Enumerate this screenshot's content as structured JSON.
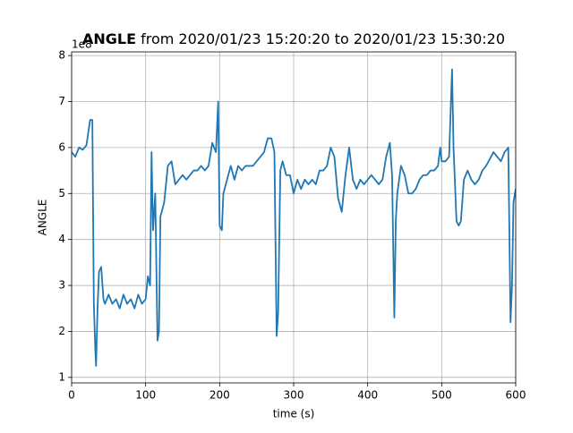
{
  "chart_data": {
    "type": "line",
    "title_bold": "ANGLE",
    "title": "from 2020/01/23 15:20:20 to 2020/01/23 15:30:20",
    "y_offset_label": "1e8",
    "xlabel": "time (s)",
    "ylabel": "ANGLE",
    "xlim": [
      0,
      600
    ],
    "ylim": [
      0.88,
      8.08
    ],
    "xticks": [
      0,
      100,
      200,
      300,
      400,
      500,
      600
    ],
    "yticks": [
      1,
      2,
      3,
      4,
      5,
      6,
      7,
      8
    ],
    "grid": true,
    "x": [
      0,
      5,
      10,
      15,
      20,
      25,
      28,
      30,
      32,
      33,
      35,
      37,
      40,
      43,
      45,
      50,
      55,
      60,
      65,
      70,
      75,
      80,
      85,
      90,
      95,
      100,
      103,
      106,
      108,
      110,
      113,
      116,
      118,
      120,
      125,
      130,
      135,
      140,
      145,
      150,
      155,
      160,
      165,
      170,
      175,
      180,
      185,
      190,
      195,
      198,
      200,
      203,
      205,
      210,
      215,
      220,
      225,
      230,
      235,
      240,
      245,
      250,
      255,
      260,
      265,
      270,
      274,
      277,
      279,
      282,
      285,
      290,
      295,
      300,
      305,
      310,
      315,
      320,
      325,
      330,
      335,
      340,
      345,
      350,
      355,
      360,
      365,
      370,
      375,
      380,
      385,
      390,
      395,
      400,
      405,
      410,
      415,
      420,
      425,
      430,
      433,
      436,
      438,
      440,
      445,
      450,
      455,
      460,
      465,
      470,
      475,
      480,
      485,
      490,
      495,
      498,
      500,
      505,
      510,
      514,
      516,
      520,
      523,
      526,
      530,
      535,
      540,
      545,
      550,
      555,
      560,
      570,
      580,
      585,
      590,
      593,
      595,
      597,
      600
    ],
    "series": [
      {
        "name": "ANGLE",
        "color": "#1f77b4",
        "values": [
          5.9,
          5.8,
          6.0,
          5.95,
          6.05,
          6.6,
          6.6,
          2.6,
          1.6,
          1.25,
          2.5,
          3.3,
          3.4,
          2.7,
          2.6,
          2.8,
          2.6,
          2.7,
          2.5,
          2.8,
          2.6,
          2.7,
          2.5,
          2.8,
          2.6,
          2.7,
          3.2,
          3.0,
          5.9,
          4.2,
          5.0,
          1.8,
          2.0,
          4.5,
          4.8,
          5.6,
          5.7,
          5.2,
          5.3,
          5.4,
          5.3,
          5.4,
          5.5,
          5.5,
          5.6,
          5.5,
          5.6,
          6.1,
          5.9,
          7.0,
          4.3,
          4.2,
          5.0,
          5.3,
          5.6,
          5.3,
          5.6,
          5.5,
          5.6,
          5.6,
          5.6,
          5.7,
          5.8,
          5.9,
          6.2,
          6.2,
          5.9,
          1.9,
          2.4,
          5.5,
          5.7,
          5.4,
          5.4,
          5.0,
          5.3,
          5.1,
          5.3,
          5.2,
          5.3,
          5.2,
          5.5,
          5.5,
          5.6,
          6.0,
          5.8,
          4.9,
          4.6,
          5.4,
          6.0,
          5.3,
          5.1,
          5.3,
          5.2,
          5.3,
          5.4,
          5.3,
          5.2,
          5.3,
          5.8,
          6.1,
          5.4,
          2.3,
          4.4,
          5.0,
          5.6,
          5.4,
          5.0,
          5.0,
          5.1,
          5.3,
          5.4,
          5.4,
          5.5,
          5.5,
          5.6,
          6.0,
          5.7,
          5.7,
          5.8,
          7.7,
          6.0,
          4.4,
          4.3,
          4.4,
          5.3,
          5.5,
          5.3,
          5.2,
          5.3,
          5.5,
          5.6,
          5.9,
          5.7,
          5.9,
          6.0,
          2.2,
          3.0,
          4.8,
          5.1
        ]
      }
    ]
  }
}
